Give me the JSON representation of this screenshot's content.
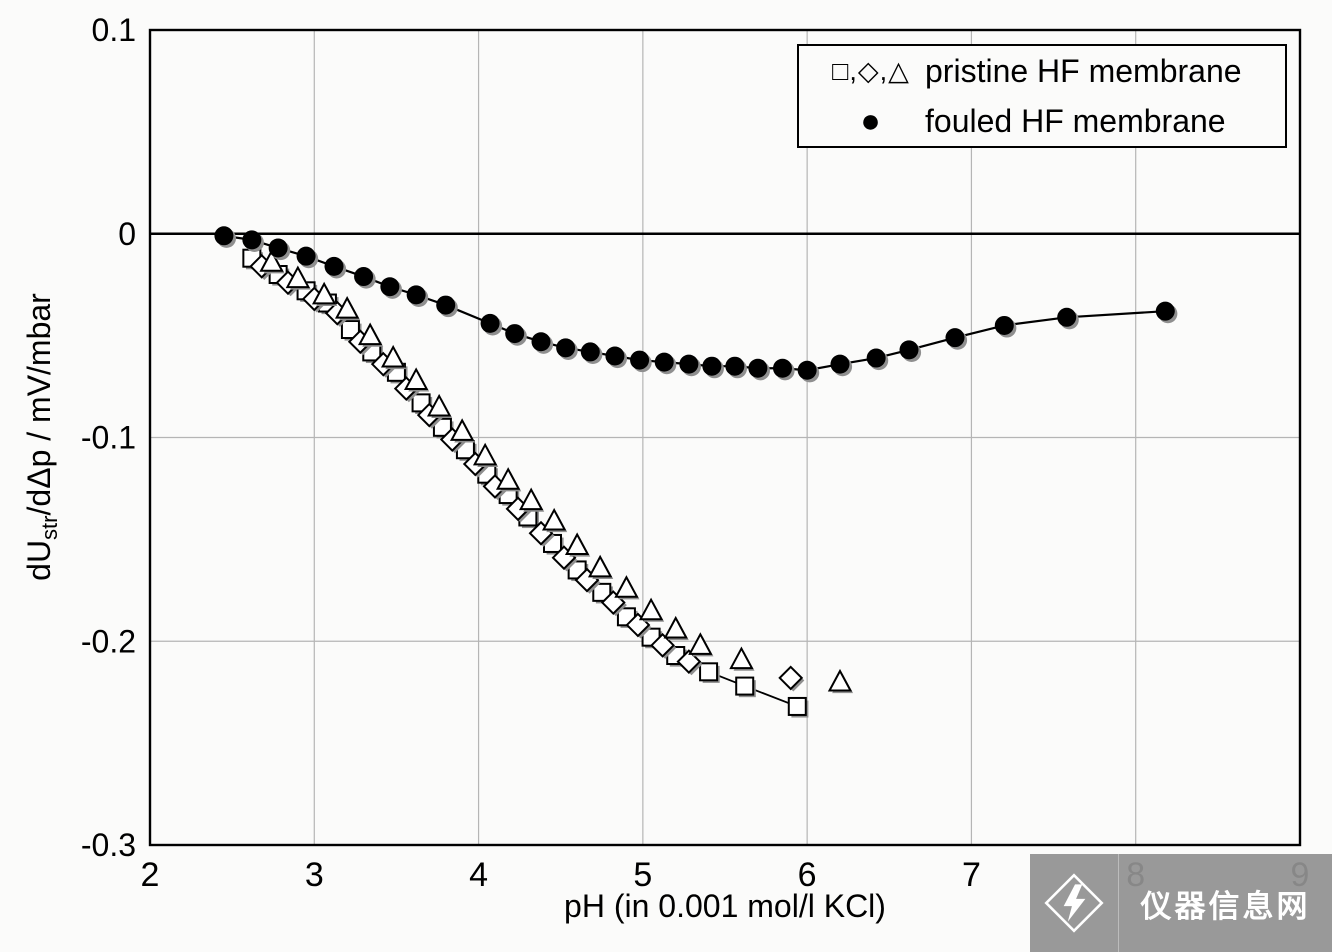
{
  "labels": {
    "x": "pH (in 0.001 mol/l KCl)",
    "y_pre": "dU",
    "y_sub": "str",
    "y_post": "/dΔp / mV/mbar"
  },
  "legend": {
    "rows": [
      {
        "symbols": "□,◇,△",
        "label": "pristine HF membrane"
      },
      {
        "symbols": "●",
        "label": "fouled HF membrane"
      }
    ]
  },
  "watermark": {
    "text": "仪器信息网"
  },
  "chart_data": {
    "type": "scatter",
    "title": "",
    "xlabel": "pH (in 0.001 mol/l KCl)",
    "ylabel": "dU_str/dΔp / mV/mbar",
    "xlim": [
      2,
      9
    ],
    "ylim": [
      -0.3,
      0.1
    ],
    "x_ticks": [
      2,
      3,
      4,
      5,
      6,
      7,
      8,
      9
    ],
    "y_ticks": [
      0.1,
      0,
      -0.1,
      -0.2,
      -0.3
    ],
    "y_tick_labels": [
      "0.1",
      "0",
      "-0.1",
      "-0.2",
      "-0.3"
    ],
    "grid": true,
    "legend_position": "top-right",
    "colors": {
      "grid": "#b5b5b5",
      "axis": "#000000",
      "marker_fill": "#ffffff",
      "marker_stroke": "#000000",
      "shadow": "#8f8f8f",
      "watermark_bg": "#919191"
    },
    "series": [
      {
        "name": "pristine HF membrane (squares)",
        "marker": "square",
        "open": true,
        "line": true,
        "points": [
          [
            2.62,
            -0.012
          ],
          [
            2.78,
            -0.02
          ],
          [
            2.95,
            -0.028
          ],
          [
            3.08,
            -0.034
          ],
          [
            3.22,
            -0.047
          ],
          [
            3.35,
            -0.058
          ],
          [
            3.5,
            -0.068
          ],
          [
            3.65,
            -0.083
          ],
          [
            3.78,
            -0.095
          ],
          [
            3.92,
            -0.106
          ],
          [
            4.05,
            -0.118
          ],
          [
            4.18,
            -0.128
          ],
          [
            4.3,
            -0.139
          ],
          [
            4.45,
            -0.152
          ],
          [
            4.6,
            -0.165
          ],
          [
            4.75,
            -0.176
          ],
          [
            4.9,
            -0.188
          ],
          [
            5.05,
            -0.198
          ],
          [
            5.2,
            -0.207
          ],
          [
            5.4,
            -0.215
          ],
          [
            5.62,
            -0.222
          ],
          [
            5.94,
            -0.232
          ]
        ]
      },
      {
        "name": "pristine HF membrane (diamonds)",
        "marker": "diamond",
        "open": true,
        "line": false,
        "points": [
          [
            2.68,
            -0.016
          ],
          [
            2.84,
            -0.024
          ],
          [
            3.0,
            -0.032
          ],
          [
            3.14,
            -0.039
          ],
          [
            3.28,
            -0.053
          ],
          [
            3.42,
            -0.064
          ],
          [
            3.56,
            -0.076
          ],
          [
            3.7,
            -0.089
          ],
          [
            3.84,
            -0.101
          ],
          [
            3.98,
            -0.113
          ],
          [
            4.1,
            -0.124
          ],
          [
            4.24,
            -0.135
          ],
          [
            4.38,
            -0.147
          ],
          [
            4.52,
            -0.159
          ],
          [
            4.66,
            -0.17
          ],
          [
            4.82,
            -0.181
          ],
          [
            4.97,
            -0.192
          ],
          [
            5.12,
            -0.202
          ],
          [
            5.28,
            -0.21
          ],
          [
            5.9,
            -0.218
          ]
        ]
      },
      {
        "name": "pristine HF membrane (triangles)",
        "marker": "triangle",
        "open": true,
        "line": false,
        "points": [
          [
            2.74,
            -0.014
          ],
          [
            2.9,
            -0.022
          ],
          [
            3.06,
            -0.03
          ],
          [
            3.2,
            -0.037
          ],
          [
            3.34,
            -0.05
          ],
          [
            3.48,
            -0.061
          ],
          [
            3.62,
            -0.072
          ],
          [
            3.76,
            -0.085
          ],
          [
            3.9,
            -0.097
          ],
          [
            4.04,
            -0.109
          ],
          [
            4.18,
            -0.121
          ],
          [
            4.32,
            -0.131
          ],
          [
            4.46,
            -0.141
          ],
          [
            4.6,
            -0.153
          ],
          [
            4.74,
            -0.164
          ],
          [
            4.9,
            -0.174
          ],
          [
            5.05,
            -0.185
          ],
          [
            5.2,
            -0.194
          ],
          [
            5.35,
            -0.202
          ],
          [
            5.6,
            -0.209
          ],
          [
            6.2,
            -0.22
          ]
        ]
      },
      {
        "name": "fouled HF membrane",
        "marker": "circle",
        "open": false,
        "line": true,
        "points": [
          [
            2.45,
            -0.001
          ],
          [
            2.62,
            -0.003
          ],
          [
            2.78,
            -0.007
          ],
          [
            2.95,
            -0.011
          ],
          [
            3.12,
            -0.016
          ],
          [
            3.3,
            -0.021
          ],
          [
            3.46,
            -0.026
          ],
          [
            3.62,
            -0.03
          ],
          [
            3.8,
            -0.035
          ],
          [
            4.07,
            -0.044
          ],
          [
            4.22,
            -0.049
          ],
          [
            4.38,
            -0.053
          ],
          [
            4.53,
            -0.056
          ],
          [
            4.68,
            -0.058
          ],
          [
            4.83,
            -0.06
          ],
          [
            4.98,
            -0.062
          ],
          [
            5.13,
            -0.063
          ],
          [
            5.28,
            -0.064
          ],
          [
            5.42,
            -0.065
          ],
          [
            5.56,
            -0.065
          ],
          [
            5.7,
            -0.066
          ],
          [
            5.85,
            -0.066
          ],
          [
            6.0,
            -0.067
          ],
          [
            6.2,
            -0.064
          ],
          [
            6.42,
            -0.061
          ],
          [
            6.62,
            -0.057
          ],
          [
            6.9,
            -0.051
          ],
          [
            7.2,
            -0.045
          ],
          [
            7.58,
            -0.041
          ],
          [
            8.18,
            -0.038
          ]
        ]
      }
    ]
  }
}
